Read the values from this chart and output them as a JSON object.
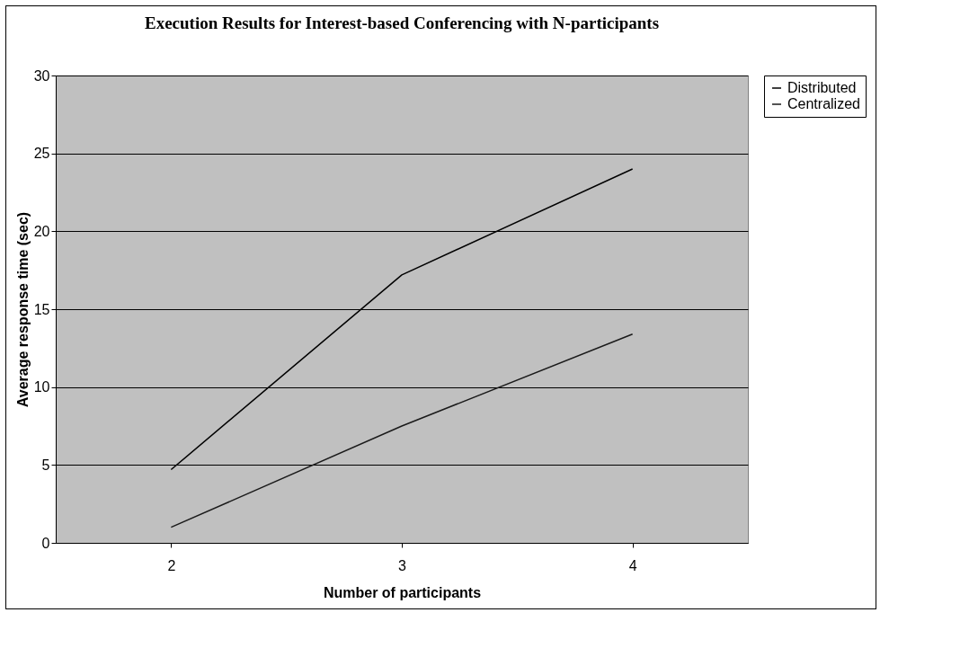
{
  "chart_data": {
    "type": "line",
    "title": "Execution Results for Interest-based Conferencing with N-participants",
    "xlabel": "Number of participants",
    "ylabel": "Average response time (sec)",
    "categories": [
      "2",
      "3",
      "4"
    ],
    "series": [
      {
        "name": "Distributed",
        "color": "#000000",
        "values": [
          4.7,
          17.2,
          24
        ]
      },
      {
        "name": "Centralized",
        "color": "#1a1a1a",
        "values": [
          1,
          7.5,
          13.4
        ]
      }
    ],
    "ylim": [
      0,
      30
    ],
    "yticks": [
      0,
      5,
      10,
      15,
      20,
      25,
      30
    ],
    "grid": "y",
    "legend": "right",
    "marker": "none",
    "line_style": "solid"
  }
}
